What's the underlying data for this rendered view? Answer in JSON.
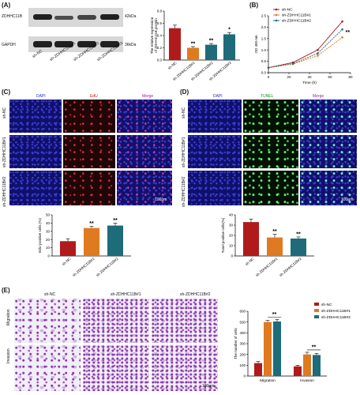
{
  "colors": {
    "nc": "#b01a1a",
    "kd1": "#e07a20",
    "kd2": "#1e6b7a",
    "kd3": "#1e6b7a"
  },
  "panelA": {
    "label": "(A)",
    "blot_rows": [
      "ZDHHC11B",
      "GAPDH"
    ],
    "sizes": [
      "42kDa",
      "36kDa"
    ],
    "lanes": [
      "sh-NC",
      "sh-ZDHHC11B#1",
      "sh-ZDHHC11B#2",
      "sh-ZDHHC11B#3"
    ],
    "ylabel": "The relative expression\nof ZDHHC11B protein",
    "sig": [
      "",
      "**",
      "**",
      "*"
    ]
  },
  "panelB": {
    "label": "(B)",
    "xlabel": "Time (h)",
    "ylabel": "OD 450 nm",
    "legend": [
      "sh-NC",
      "sh-ZDHHC11B#1",
      "sh-ZDHHC11B#2"
    ],
    "sig": "**"
  },
  "panelC": {
    "label": "(C)",
    "cols": [
      "DAPI",
      "EdU",
      "Merge"
    ],
    "rows": [
      "sh-NC",
      "sh-ZDHHC11B#1",
      "sh-ZDHHC11B#2"
    ],
    "scale": "100μm",
    "ylabel": "EdU positive cells (%)",
    "cats": [
      "sh-NC",
      "sh-ZDHHC11B#1",
      "sh-ZDHHC11B#2"
    ],
    "sig": [
      "",
      "**",
      "**"
    ]
  },
  "panelD": {
    "label": "(D)",
    "cols": [
      "DAPI",
      "TUNEL",
      "Merge"
    ],
    "rows": [
      "sh-NC",
      "sh-ZDHHC11B#1",
      "sh-ZDHHC11B#2"
    ],
    "scale": "100μm",
    "ylabel": "Tunel positive cells(%)",
    "cats": [
      "sh-NC",
      "sh-ZDHHC11B#1",
      "sh-ZDHHC11B#2"
    ],
    "sig": [
      "",
      "**",
      "**"
    ]
  },
  "panelE": {
    "label": "(E)",
    "cols": [
      "sh-NC",
      "sh-ZDHHC11B#1",
      "sh-ZDHHC11B#2"
    ],
    "rows": [
      "Migration",
      "Invasion"
    ],
    "scale": "100μm",
    "ylabel": "The number of cells",
    "legend": [
      "sh-NC",
      "sh-ZDHHC11B#1",
      "sh-ZDHHC11B#2"
    ],
    "sig": "**"
  },
  "chart_data": [
    {
      "type": "bar",
      "categories": [
        "sh-NC",
        "sh-ZDHHC11B#1",
        "sh-ZDHHC11B#2",
        "sh-ZDHHC11B#3"
      ],
      "values": [
        0.52,
        0.2,
        0.25,
        0.42
      ],
      "errors": [
        0.05,
        0.02,
        0.02,
        0.03
      ],
      "ylim": [
        0,
        0.8
      ],
      "yticks": [
        "0.0",
        "0.2",
        "0.4",
        "0.6",
        "0.8"
      ]
    },
    {
      "type": "line",
      "x": [
        0,
        24,
        48,
        72
      ],
      "xlim": [
        0,
        80
      ],
      "xticks": [
        "0",
        "20",
        "40",
        "60",
        "80"
      ],
      "ylim": [
        0,
        2.5
      ],
      "yticks": [
        "0.0",
        "0.5",
        "1.0",
        "1.5",
        "2.0",
        "2.5"
      ],
      "series": [
        {
          "name": "sh-NC",
          "values": [
            0.22,
            0.45,
            1.0,
            2.25
          ]
        },
        {
          "name": "sh-ZDHHC11B#1",
          "values": [
            0.22,
            0.38,
            0.75,
            1.55
          ]
        },
        {
          "name": "sh-ZDHHC11B#2",
          "values": [
            0.22,
            0.4,
            0.85,
            1.9
          ]
        }
      ]
    },
    {
      "type": "bar",
      "categories": [
        "sh-NC",
        "sh-ZDHHC11B#1",
        "sh-ZDHHC11B#2"
      ],
      "values": [
        18,
        34,
        37
      ],
      "errors": [
        3,
        2,
        3
      ],
      "ylim": [
        0,
        50
      ],
      "yticks": [
        "0",
        "10",
        "20",
        "30",
        "40",
        "50"
      ]
    },
    {
      "type": "bar",
      "categories": [
        "sh-NC",
        "sh-ZDHHC11B#1",
        "sh-ZDHHC11B#2"
      ],
      "values": [
        33,
        18,
        17
      ],
      "errors": [
        3,
        3,
        1.5
      ],
      "ylim": [
        0,
        40
      ],
      "yticks": [
        "0",
        "10",
        "20",
        "30",
        "40"
      ]
    },
    {
      "type": "bar",
      "categories": [
        "Migration",
        "Invasion"
      ],
      "series": [
        {
          "name": "sh-NC",
          "values": [
            120,
            90
          ],
          "errors": [
            15,
            10
          ]
        },
        {
          "name": "sh-ZDHHC11B#1",
          "values": [
            500,
            200
          ],
          "errors": [
            15,
            20
          ]
        },
        {
          "name": "sh-ZDHHC11B#2",
          "values": [
            505,
            195
          ],
          "errors": [
            20,
            15
          ]
        }
      ],
      "ylim": [
        0,
        600
      ],
      "yticks": [
        "0",
        "100",
        "200",
        "300",
        "400",
        "500",
        "600"
      ]
    }
  ]
}
